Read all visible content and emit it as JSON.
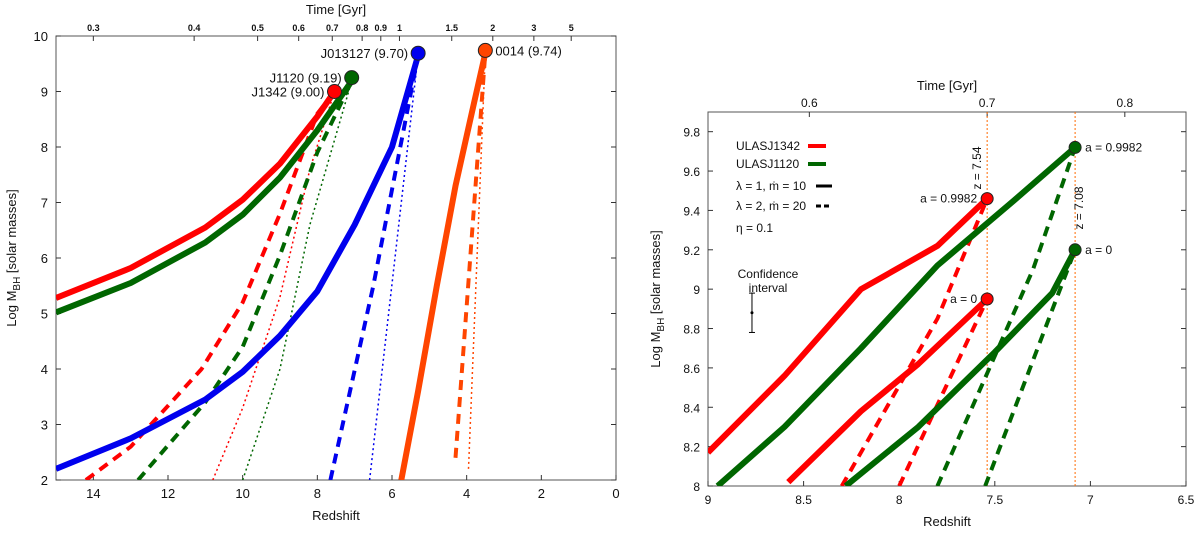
{
  "chart_data": [
    {
      "type": "line",
      "xlabel": "Redshift",
      "ylabel_main": "Log M",
      "ylabel_sub": "BH",
      "ylabel_tail": " [solar masses]",
      "top_axis_label": "Time  [Gyr]",
      "xlim": [
        15,
        0
      ],
      "ylim": [
        2,
        10
      ],
      "x_ticks": [
        "14",
        "12",
        "10",
        "8",
        "6",
        "4",
        "2",
        "0"
      ],
      "y_ticks": [
        "2",
        "3",
        "4",
        "5",
        "6",
        "7",
        "8",
        "9",
        "10"
      ],
      "top_ticks": [
        {
          "label": "0.3",
          "z": 14.0
        },
        {
          "label": "0.4",
          "z": 11.3
        },
        {
          "label": "0.5",
          "z": 9.6
        },
        {
          "label": "0.6",
          "z": 8.5
        },
        {
          "label": "0.7",
          "z": 7.6
        },
        {
          "label": "0.8",
          "z": 6.8
        },
        {
          "label": "0.9",
          "z": 6.3
        },
        {
          "label": "1",
          "z": 5.8
        },
        {
          "label": "1.5",
          "z": 4.4
        },
        {
          "label": "2",
          "z": 3.3
        },
        {
          "label": "3",
          "z": 2.2
        },
        {
          "label": "5",
          "z": 1.2
        }
      ],
      "series": [
        {
          "color": "#ff0000",
          "style": "solid",
          "points": [
            [
              15,
              5.28
            ],
            [
              13,
              5.82
            ],
            [
              11,
              6.55
            ],
            [
              10,
              7.05
            ],
            [
              9,
              7.7
            ],
            [
              8,
              8.55
            ],
            [
              7.54,
              9.0
            ]
          ]
        },
        {
          "color": "#ff0000",
          "style": "dashed",
          "points": [
            [
              14.2,
              2.0
            ],
            [
              13,
              2.6
            ],
            [
              11.1,
              4.0
            ],
            [
              10,
              5.2
            ],
            [
              9,
              6.8
            ],
            [
              8,
              8.6
            ],
            [
              7.54,
              9.0
            ]
          ]
        },
        {
          "color": "#ff0000",
          "style": "dotted",
          "points": [
            [
              10.8,
              2.0
            ],
            [
              10,
              3.3
            ],
            [
              9,
              5.3
            ],
            [
              8.2,
              7.6
            ],
            [
              7.54,
              9.0
            ]
          ]
        },
        {
          "color": "#006600",
          "style": "solid",
          "points": [
            [
              15,
              5.02
            ],
            [
              13,
              5.55
            ],
            [
              11,
              6.28
            ],
            [
              10,
              6.78
            ],
            [
              9,
              7.45
            ],
            [
              8,
              8.3
            ],
            [
              7.08,
              9.19
            ]
          ]
        },
        {
          "color": "#006600",
          "style": "dashed",
          "points": [
            [
              12.8,
              2.0
            ],
            [
              11,
              3.4
            ],
            [
              10,
              4.4
            ],
            [
              9,
              6.05
            ],
            [
              8,
              7.9
            ],
            [
              7.08,
              9.19
            ]
          ]
        },
        {
          "color": "#006600",
          "style": "dotted",
          "points": [
            [
              10.0,
              2.0
            ],
            [
              9,
              4.0
            ],
            [
              8.2,
              6.6
            ],
            [
              7.08,
              9.19
            ]
          ]
        },
        {
          "color": "#0000ee",
          "style": "solid",
          "points": [
            [
              15,
              2.2
            ],
            [
              13,
              2.75
            ],
            [
              11,
              3.45
            ],
            [
              10,
              3.95
            ],
            [
              9,
              4.6
            ],
            [
              8,
              5.4
            ],
            [
              7,
              6.6
            ],
            [
              6,
              8.0
            ],
            [
              5.3,
              9.65
            ]
          ]
        },
        {
          "color": "#0000ee",
          "style": "dashed",
          "points": [
            [
              7.65,
              2.0
            ],
            [
              6.5,
              5.5
            ],
            [
              5.3,
              9.65
            ]
          ]
        },
        {
          "color": "#0000ee",
          "style": "dotted",
          "points": [
            [
              6.6,
              2.0
            ],
            [
              5.3,
              9.65
            ]
          ]
        },
        {
          "color": "#ff4500",
          "style": "solid",
          "points": [
            [
              5.75,
              2.0
            ],
            [
              5.3,
              3.6
            ],
            [
              4.8,
              5.5
            ],
            [
              4.3,
              7.3
            ],
            [
              3.8,
              8.8
            ],
            [
              3.5,
              9.69
            ]
          ]
        },
        {
          "color": "#ff4500",
          "style": "dashed",
          "points": [
            [
              4.3,
              2.4
            ],
            [
              3.5,
              9.69
            ]
          ]
        },
        {
          "color": "#ff4500",
          "style": "dotted",
          "points": [
            [
              3.95,
              2.2
            ],
            [
              3.5,
              9.69
            ]
          ]
        }
      ],
      "markers": [
        {
          "label": "J1342 (9.00)",
          "x": 7.54,
          "y": 9.0,
          "color": "#ff0000",
          "side": "left"
        },
        {
          "label": "J1120 (9.19)",
          "x": 7.08,
          "y": 9.25,
          "color": "#006600",
          "side": "left"
        },
        {
          "label": "J013127 (9.70)",
          "x": 5.3,
          "y": 9.69,
          "color": "#0000ee",
          "side": "left"
        },
        {
          "label": "0014 (9.74)",
          "x": 3.5,
          "y": 9.74,
          "color": "#ff4500",
          "side": "right"
        }
      ]
    },
    {
      "type": "line",
      "xlabel": "Redshift",
      "ylabel_main": "Log M",
      "ylabel_sub": "BH",
      "ylabel_tail": " [solar masses]",
      "top_axis_label": "Time  [Gyr]",
      "xlim": [
        9,
        6.5
      ],
      "ylim": [
        8,
        9.9
      ],
      "x_ticks": [
        "9",
        "8.5",
        "8",
        "7.5",
        "7",
        "6.5"
      ],
      "y_ticks": [
        "8",
        "8.2",
        "8.4",
        "8.6",
        "8.8",
        "9",
        "9.2",
        "9.4",
        "9.6",
        "9.8"
      ],
      "top_ticks": [
        {
          "label": "0.6",
          "z": 8.47
        },
        {
          "label": "0.7",
          "z": 7.54
        },
        {
          "label": "0.8",
          "z": 6.82
        }
      ],
      "vlines": [
        {
          "x": 7.54,
          "label": "z = 7.54"
        },
        {
          "x": 7.08,
          "label": "z = 7.08"
        }
      ],
      "series": [
        {
          "color": "#ff0000",
          "style": "solid",
          "points": [
            [
              9.0,
              8.17
            ],
            [
              8.6,
              8.56
            ],
            [
              8.2,
              9.0
            ],
            [
              7.8,
              9.22
            ],
            [
              7.54,
              9.46
            ]
          ]
        },
        {
          "color": "#ff0000",
          "style": "solid",
          "points": [
            [
              8.58,
              8.02
            ],
            [
              8.2,
              8.38
            ],
            [
              7.9,
              8.62
            ],
            [
              7.54,
              8.95
            ]
          ]
        },
        {
          "color": "#ff0000",
          "style": "dashed",
          "points": [
            [
              8.3,
              8.0
            ],
            [
              7.8,
              8.85
            ],
            [
              7.54,
              9.46
            ]
          ]
        },
        {
          "color": "#ff0000",
          "style": "dashed",
          "points": [
            [
              8.0,
              8.0
            ],
            [
              7.54,
              8.95
            ]
          ]
        },
        {
          "color": "#006600",
          "style": "solid",
          "points": [
            [
              8.95,
              8.0
            ],
            [
              8.6,
              8.3
            ],
            [
              8.2,
              8.7
            ],
            [
              7.8,
              9.12
            ],
            [
              7.4,
              9.45
            ],
            [
              7.08,
              9.72
            ]
          ]
        },
        {
          "color": "#006600",
          "style": "solid",
          "points": [
            [
              8.28,
              8.0
            ],
            [
              7.9,
              8.3
            ],
            [
              7.5,
              8.68
            ],
            [
              7.2,
              8.98
            ],
            [
              7.08,
              9.2
            ]
          ]
        },
        {
          "color": "#006600",
          "style": "dashed",
          "points": [
            [
              7.8,
              8.0
            ],
            [
              7.3,
              9.1
            ],
            [
              7.08,
              9.72
            ]
          ]
        },
        {
          "color": "#006600",
          "style": "dashed",
          "points": [
            [
              7.55,
              8.0
            ],
            [
              7.08,
              9.2
            ]
          ]
        }
      ],
      "markers": [
        {
          "label": "a = 0.9982",
          "x": 7.54,
          "y": 9.46,
          "color": "#ff0000",
          "side": "left"
        },
        {
          "label": "a = 0",
          "x": 7.54,
          "y": 8.95,
          "color": "#ff0000",
          "side": "left"
        },
        {
          "label": "a = 0.9982",
          "x": 7.08,
          "y": 9.72,
          "color": "#006600",
          "side": "right"
        },
        {
          "label": "a = 0",
          "x": 7.08,
          "y": 9.2,
          "color": "#006600",
          "side": "right"
        }
      ],
      "legend": [
        {
          "label": "ULASJ1342",
          "color": "#ff0000",
          "style": "solid"
        },
        {
          "label": "ULASJ1120",
          "color": "#006600",
          "style": "solid"
        }
      ],
      "legend_styles": [
        {
          "label": "λ = 1, ṁ = 10",
          "style": "solid"
        },
        {
          "label": "λ = 2, ṁ = 20",
          "style": "dashed"
        }
      ],
      "eta_label": "η = 0.1",
      "confidence_label_line1": "Confidence",
      "confidence_label_line2": "interval",
      "confidence": {
        "x": 8.77,
        "y": 8.88,
        "low": 8.78,
        "high": 8.98
      }
    }
  ]
}
